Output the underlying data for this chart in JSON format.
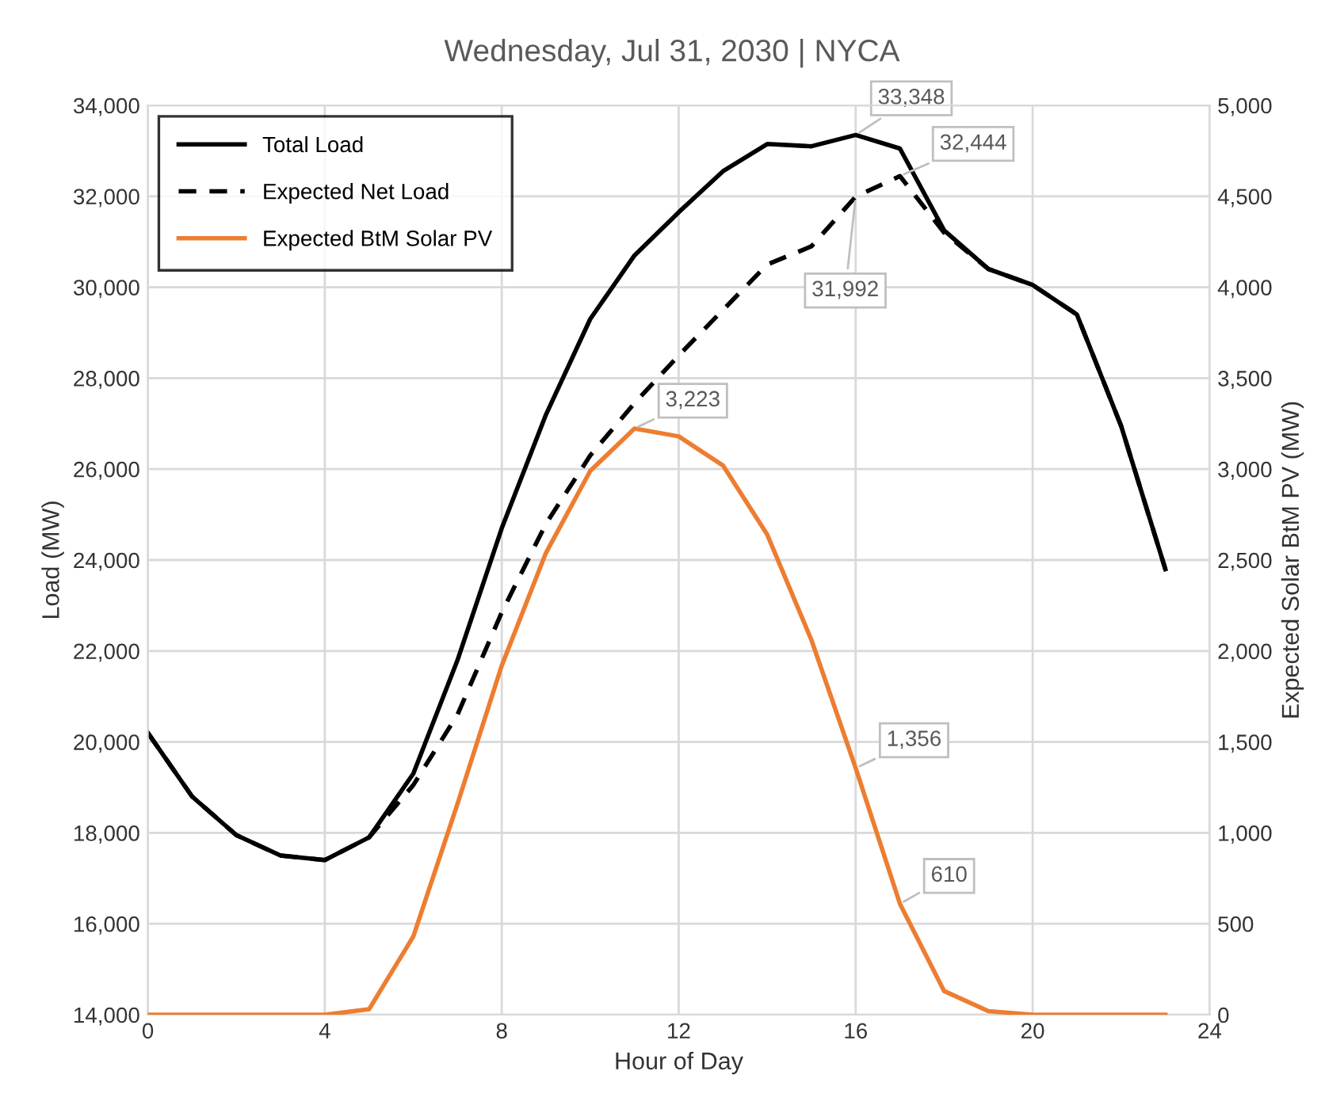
{
  "chart_data": {
    "type": "line",
    "title": "Wednesday, Jul 31, 2030 | NYCA",
    "xlabel": "Hour of Day",
    "ylabel": "Load (MW)",
    "y2label": "Expected Solar BtM PV (MW)",
    "x": [
      0,
      1,
      2,
      3,
      4,
      5,
      6,
      7,
      8,
      9,
      10,
      11,
      12,
      13,
      14,
      15,
      16,
      17,
      18,
      19,
      20,
      21,
      22,
      23
    ],
    "xlim": [
      0,
      24
    ],
    "xticks": [
      0,
      4,
      8,
      12,
      16,
      20,
      24
    ],
    "ylim": [
      14000,
      34000
    ],
    "yticks": [
      {
        "value": 14000,
        "label": "14,000"
      },
      {
        "value": 16000,
        "label": "16,000"
      },
      {
        "value": 18000,
        "label": "18,000"
      },
      {
        "value": 20000,
        "label": "20,000"
      },
      {
        "value": 22000,
        "label": "22,000"
      },
      {
        "value": 24000,
        "label": "24,000"
      },
      {
        "value": 26000,
        "label": "26,000"
      },
      {
        "value": 28000,
        "label": "28,000"
      },
      {
        "value": 30000,
        "label": "30,000"
      },
      {
        "value": 32000,
        "label": "32,000"
      },
      {
        "value": 34000,
        "label": "34,000"
      }
    ],
    "y2lim": [
      0,
      5000
    ],
    "y2ticks": [
      0,
      500,
      {
        "value": 1000,
        "label": "1,000"
      },
      {
        "value": 1500,
        "label": "1,500"
      },
      {
        "value": 2000,
        "label": "2,000"
      },
      {
        "value": 2500,
        "label": "2,500"
      },
      {
        "value": 3000,
        "label": "3,000"
      },
      {
        "value": 3500,
        "label": "3,500"
      },
      {
        "value": 4000,
        "label": "4,000"
      },
      {
        "value": 4500,
        "label": "4,500"
      },
      {
        "value": 5000,
        "label": "5,000"
      }
    ],
    "grid": true,
    "legend": "top left",
    "series": [
      {
        "name": "Total Load",
        "color": "#000000",
        "line_style": "solid",
        "values": [
          20200,
          18800,
          17950,
          17500,
          17400,
          17900,
          19300,
          21800,
          24700,
          27200,
          29300,
          30700,
          31650,
          32550,
          33150,
          33100,
          33348,
          33050,
          31250,
          30400,
          30050,
          29400,
          26950,
          23800
        ],
        "value_labels": [
          null,
          null,
          null,
          null,
          null,
          null,
          null,
          null,
          null,
          null,
          null,
          null,
          null,
          null,
          null,
          null,
          "33,348",
          null,
          null,
          null,
          null,
          null,
          null,
          null
        ]
      },
      {
        "name": "Expected Net Load",
        "color": "#000000",
        "line_style": "dashed",
        "values": [
          20200,
          18800,
          17950,
          17500,
          17400,
          17900,
          19050,
          20600,
          22850,
          24800,
          26300,
          27450,
          28500,
          29500,
          30500,
          30900,
          31992,
          32444,
          31200,
          30400,
          30050,
          29400,
          26950,
          23800
        ],
        "value_labels": [
          null,
          null,
          null,
          null,
          null,
          null,
          null,
          null,
          null,
          null,
          null,
          null,
          null,
          null,
          null,
          null,
          "31,992",
          "32,444",
          null,
          null,
          null,
          null,
          null,
          null
        ]
      },
      {
        "name": "Expected BtM Solar PV",
        "color": "#ed7d31",
        "line_style": "solid",
        "axis": "y2",
        "values": [
          0,
          0,
          0,
          0,
          0,
          30,
          430,
          1160,
          1920,
          2540,
          2990,
          3223,
          3180,
          3020,
          2640,
          2060,
          1356,
          610,
          130,
          20,
          0,
          0,
          0,
          0
        ],
        "value_labels": [
          null,
          null,
          null,
          null,
          null,
          null,
          null,
          null,
          null,
          null,
          null,
          "3,223",
          null,
          null,
          null,
          null,
          "1,356",
          "610",
          null,
          null,
          null,
          null,
          null,
          null
        ]
      }
    ]
  }
}
